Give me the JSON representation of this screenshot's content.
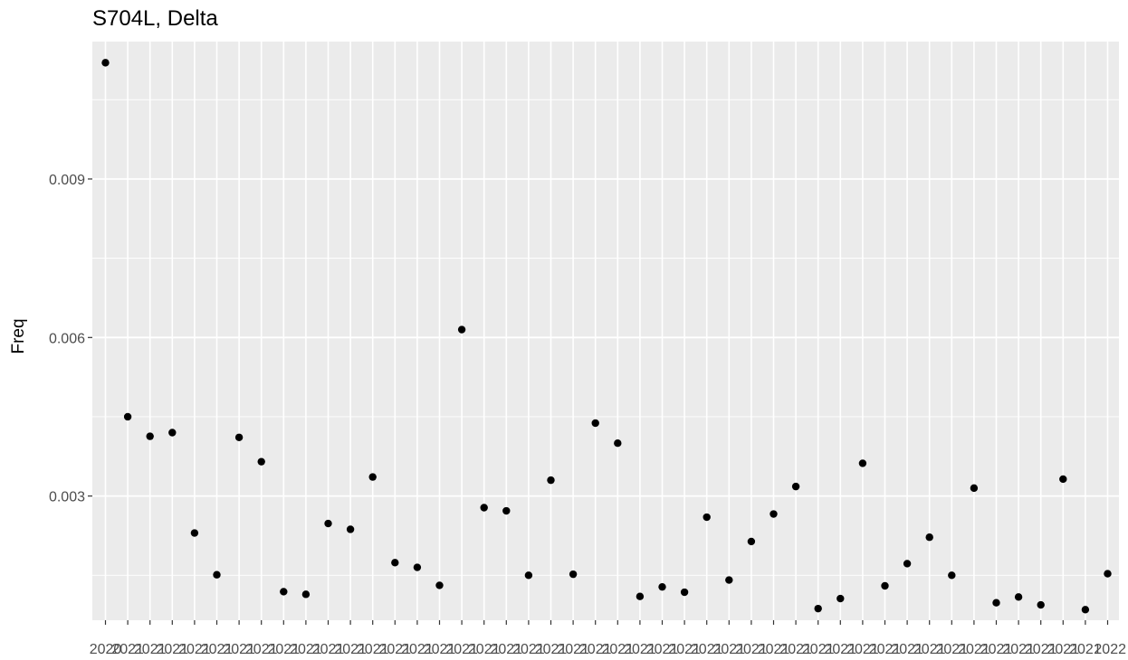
{
  "chart_data": {
    "type": "scatter",
    "title": "S704L, Delta",
    "xlabel": "",
    "ylabel": "Freq",
    "x_tick_labels": [
      "2020",
      "2021",
      "2021",
      "2021",
      "2021",
      "2021",
      "2021",
      "2021",
      "2021",
      "2021",
      "2021",
      "2021",
      "2021",
      "2021",
      "2021",
      "2021",
      "2021",
      "2021",
      "2021",
      "2021",
      "2021",
      "2021",
      "2021",
      "2021",
      "2021",
      "2021",
      "2021",
      "2021",
      "2021",
      "2021",
      "2021",
      "2021",
      "2021",
      "2021",
      "2021",
      "2021",
      "2021",
      "2021",
      "2021",
      "2021",
      "2021",
      "2021",
      "2021",
      "2021",
      "2021",
      "2022"
    ],
    "y_ticks": [
      0.003,
      0.006,
      0.009
    ],
    "y_tick_labels": [
      "0.003",
      "0.006",
      "0.009"
    ],
    "ylim": [
      0.00065,
      0.0116
    ],
    "grid": true,
    "point_color": "#000000",
    "panel_color": "#ebebeb",
    "values": [
      0.0112,
      0.0045,
      0.00413,
      0.0042,
      0.0023,
      0.00151,
      0.00411,
      0.00365,
      0.00119,
      0.00114,
      0.00248,
      0.00237,
      0.00336,
      0.00174,
      0.00165,
      0.00131,
      0.00615,
      0.00278,
      0.00272,
      0.0015,
      0.0033,
      0.00152,
      0.00438,
      0.004,
      0.0011,
      0.00128,
      0.00118,
      0.0026,
      0.00141,
      0.00214,
      0.00266,
      0.00318,
      0.00087,
      0.00106,
      0.00362,
      0.0013,
      0.00172,
      0.00222,
      0.0015,
      0.00315,
      0.00098,
      0.00109,
      0.00094,
      0.00332,
      0.00085,
      0.00153
    ]
  }
}
